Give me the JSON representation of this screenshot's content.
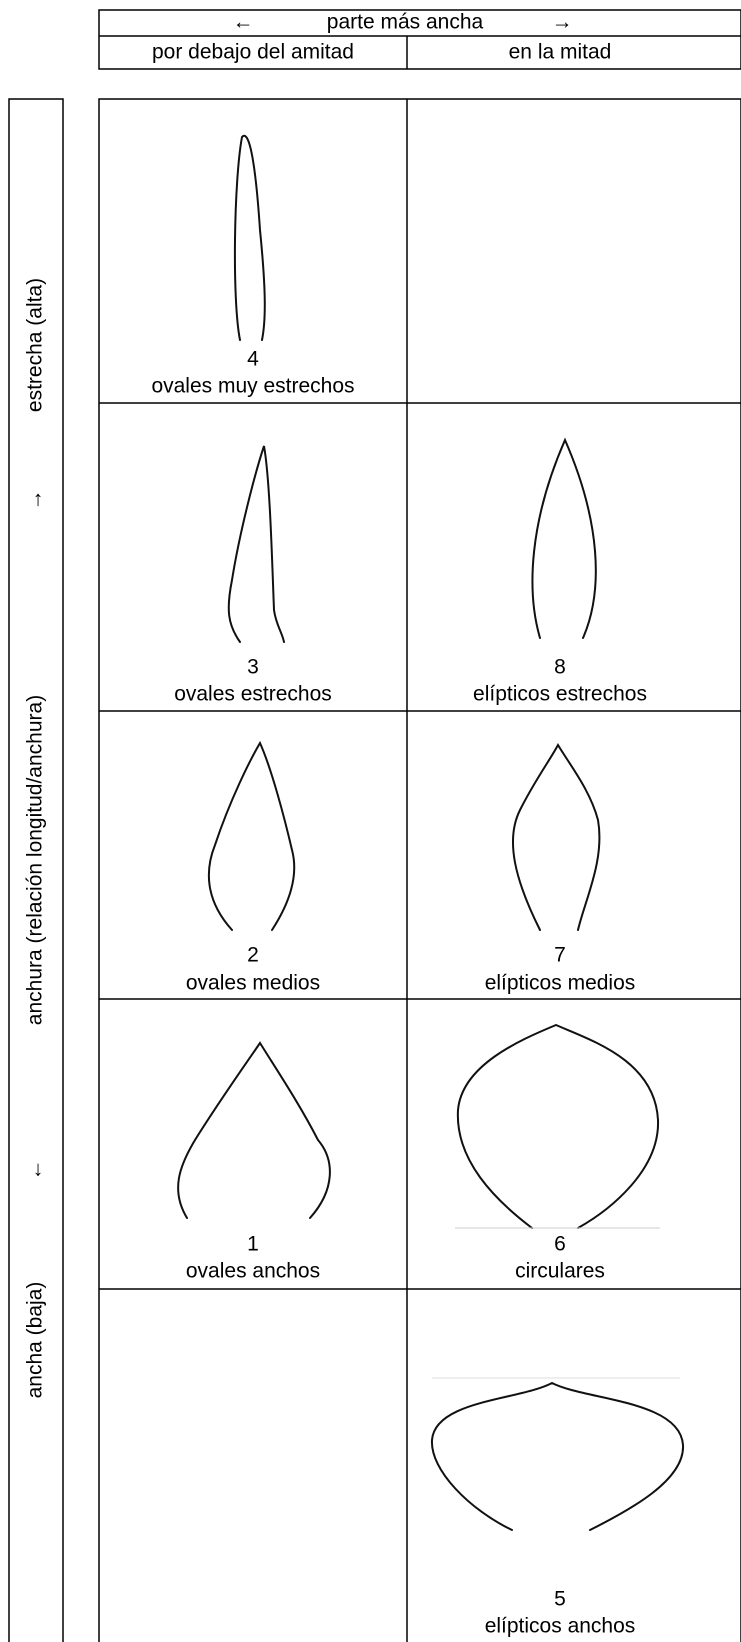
{
  "header": {
    "arrow_left": "←",
    "title": "parte más ancha",
    "arrow_right": "→",
    "columns": [
      "por debajo del amitad",
      "en la mitad"
    ]
  },
  "side": {
    "narrow": "estrecha (alta)",
    "arrow_narrow": "→",
    "axis": "anchura (relación longitud/anchura)",
    "arrow_wide": "←",
    "wide": "ancha (baja)"
  },
  "grid": {
    "rows": [
      [
        {
          "number": 4,
          "label": "ovales muy estrechos"
        },
        null
      ],
      [
        {
          "number": 3,
          "label": "ovales estrechos"
        },
        {
          "number": 8,
          "label": "elípticos estrechos"
        }
      ],
      [
        {
          "number": 2,
          "label": "ovales medios"
        },
        {
          "number": 7,
          "label": "elípticos medios"
        }
      ],
      [
        {
          "number": 1,
          "label": "ovales anchos"
        },
        {
          "number": 6,
          "label": "circulares"
        }
      ],
      [
        null,
        {
          "number": 5,
          "label": "elípticos anchos"
        }
      ]
    ]
  }
}
